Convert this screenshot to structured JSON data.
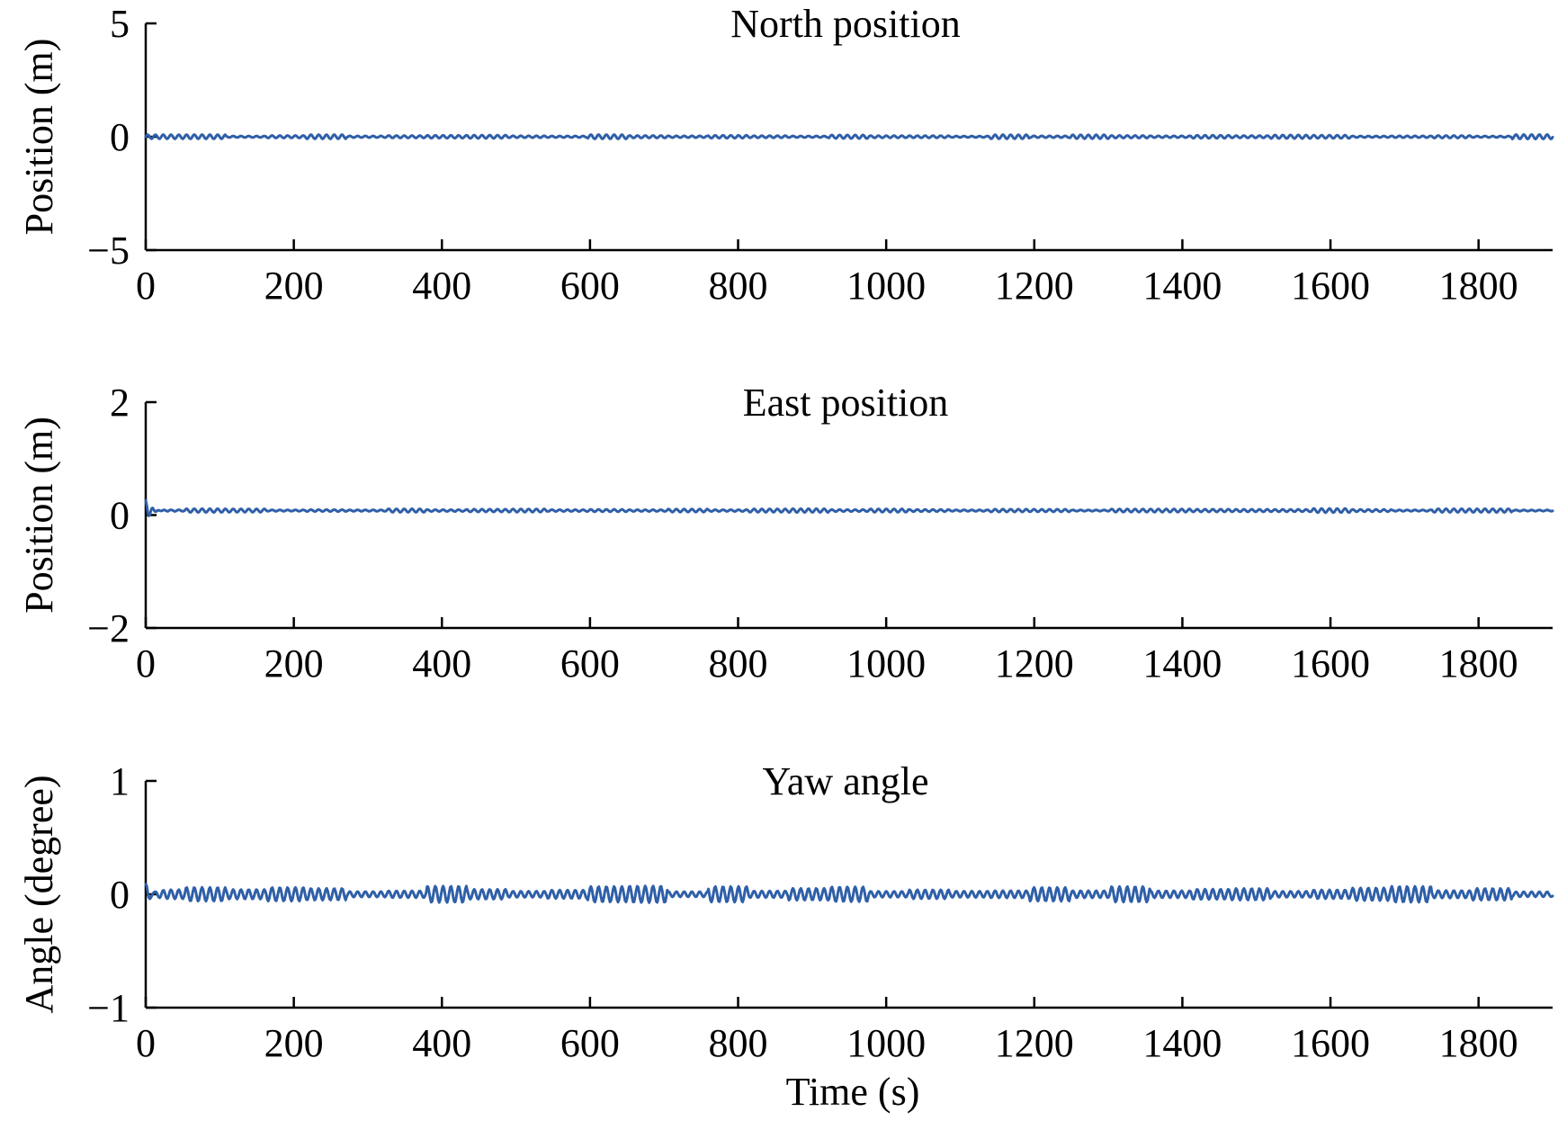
{
  "colors": {
    "series": "#2f5fa8",
    "axis": "#000000"
  },
  "chart_data": [
    {
      "type": "line",
      "title": "North position",
      "xlabel": "",
      "ylabel": "Position (m)",
      "xlim": [
        0,
        1900
      ],
      "ylim": [
        -5,
        5
      ],
      "x_ticks": [
        0,
        200,
        400,
        600,
        800,
        1000,
        1200,
        1400,
        1600,
        1800
      ],
      "y_ticks": [
        -5,
        0,
        5
      ],
      "y_tick_labels": [
        "−5",
        "0",
        "5"
      ],
      "grid": false,
      "series": [
        {
          "x": [
            0,
            1900
          ],
          "baseline": 0.0,
          "oscillation_amplitude": 0.08,
          "initial_transient": 0.0
        }
      ]
    },
    {
      "type": "line",
      "title": "East position",
      "xlabel": "",
      "ylabel": "Position (m)",
      "xlim": [
        0,
        1900
      ],
      "ylim": [
        -2,
        2
      ],
      "x_ticks": [
        0,
        200,
        400,
        600,
        800,
        1000,
        1200,
        1400,
        1600,
        1800
      ],
      "y_ticks": [
        -2,
        0,
        2
      ],
      "y_tick_labels": [
        "−2",
        "0",
        "2"
      ],
      "grid": false,
      "series": [
        {
          "x": [
            0,
            1900
          ],
          "baseline": 0.08,
          "oscillation_amplitude": 0.03,
          "initial_transient": 0.18
        }
      ]
    },
    {
      "type": "line",
      "title": "Yaw angle",
      "xlabel": "Time (s)",
      "ylabel": "Angle (degree)",
      "xlim": [
        0,
        1900
      ],
      "ylim": [
        -1,
        1
      ],
      "x_ticks": [
        0,
        200,
        400,
        600,
        800,
        1000,
        1200,
        1400,
        1600,
        1800
      ],
      "y_ticks": [
        -1,
        0,
        1
      ],
      "y_tick_labels": [
        "−1",
        "0",
        "1"
      ],
      "grid": false,
      "series": [
        {
          "x": [
            0,
            1900
          ],
          "baseline": 0.0,
          "oscillation_amplitude": 0.06,
          "initial_transient": 0.09
        }
      ]
    }
  ]
}
